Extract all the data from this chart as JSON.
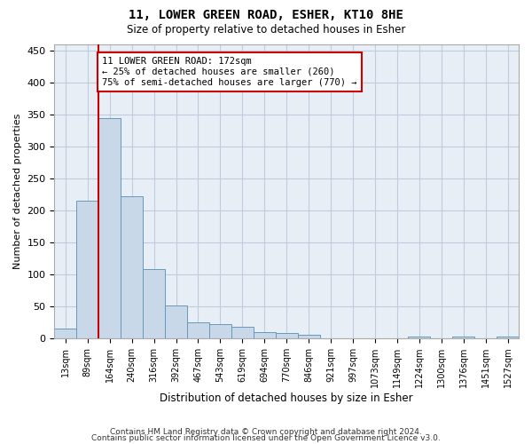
{
  "title1": "11, LOWER GREEN ROAD, ESHER, KT10 8HE",
  "title2": "Size of property relative to detached houses in Esher",
  "xlabel": "Distribution of detached houses by size in Esher",
  "ylabel": "Number of detached properties",
  "bar_color": "#c8d8e8",
  "bar_edge_color": "#6699bb",
  "grid_color": "#c0ccdd",
  "plot_bg_color": "#e8eef5",
  "categories": [
    "13sqm",
    "89sqm",
    "164sqm",
    "240sqm",
    "316sqm",
    "392sqm",
    "467sqm",
    "543sqm",
    "619sqm",
    "694sqm",
    "770sqm",
    "846sqm",
    "921sqm",
    "997sqm",
    "1073sqm",
    "1149sqm",
    "1224sqm",
    "1300sqm",
    "1376sqm",
    "1451sqm",
    "1527sqm"
  ],
  "values": [
    15,
    215,
    345,
    222,
    108,
    52,
    25,
    22,
    18,
    10,
    8,
    6,
    0,
    0,
    0,
    0,
    3,
    0,
    3,
    0,
    3
  ],
  "annotation_text": "11 LOWER GREEN ROAD: 172sqm\n← 25% of detached houses are smaller (260)\n75% of semi-detached houses are larger (770) →",
  "vline_color": "#cc0000",
  "vline_x": 1.5,
  "footer1": "Contains HM Land Registry data © Crown copyright and database right 2024.",
  "footer2": "Contains public sector information licensed under the Open Government Licence v3.0.",
  "ylim": [
    0,
    460
  ],
  "yticks": [
    0,
    50,
    100,
    150,
    200,
    250,
    300,
    350,
    400,
    450
  ]
}
